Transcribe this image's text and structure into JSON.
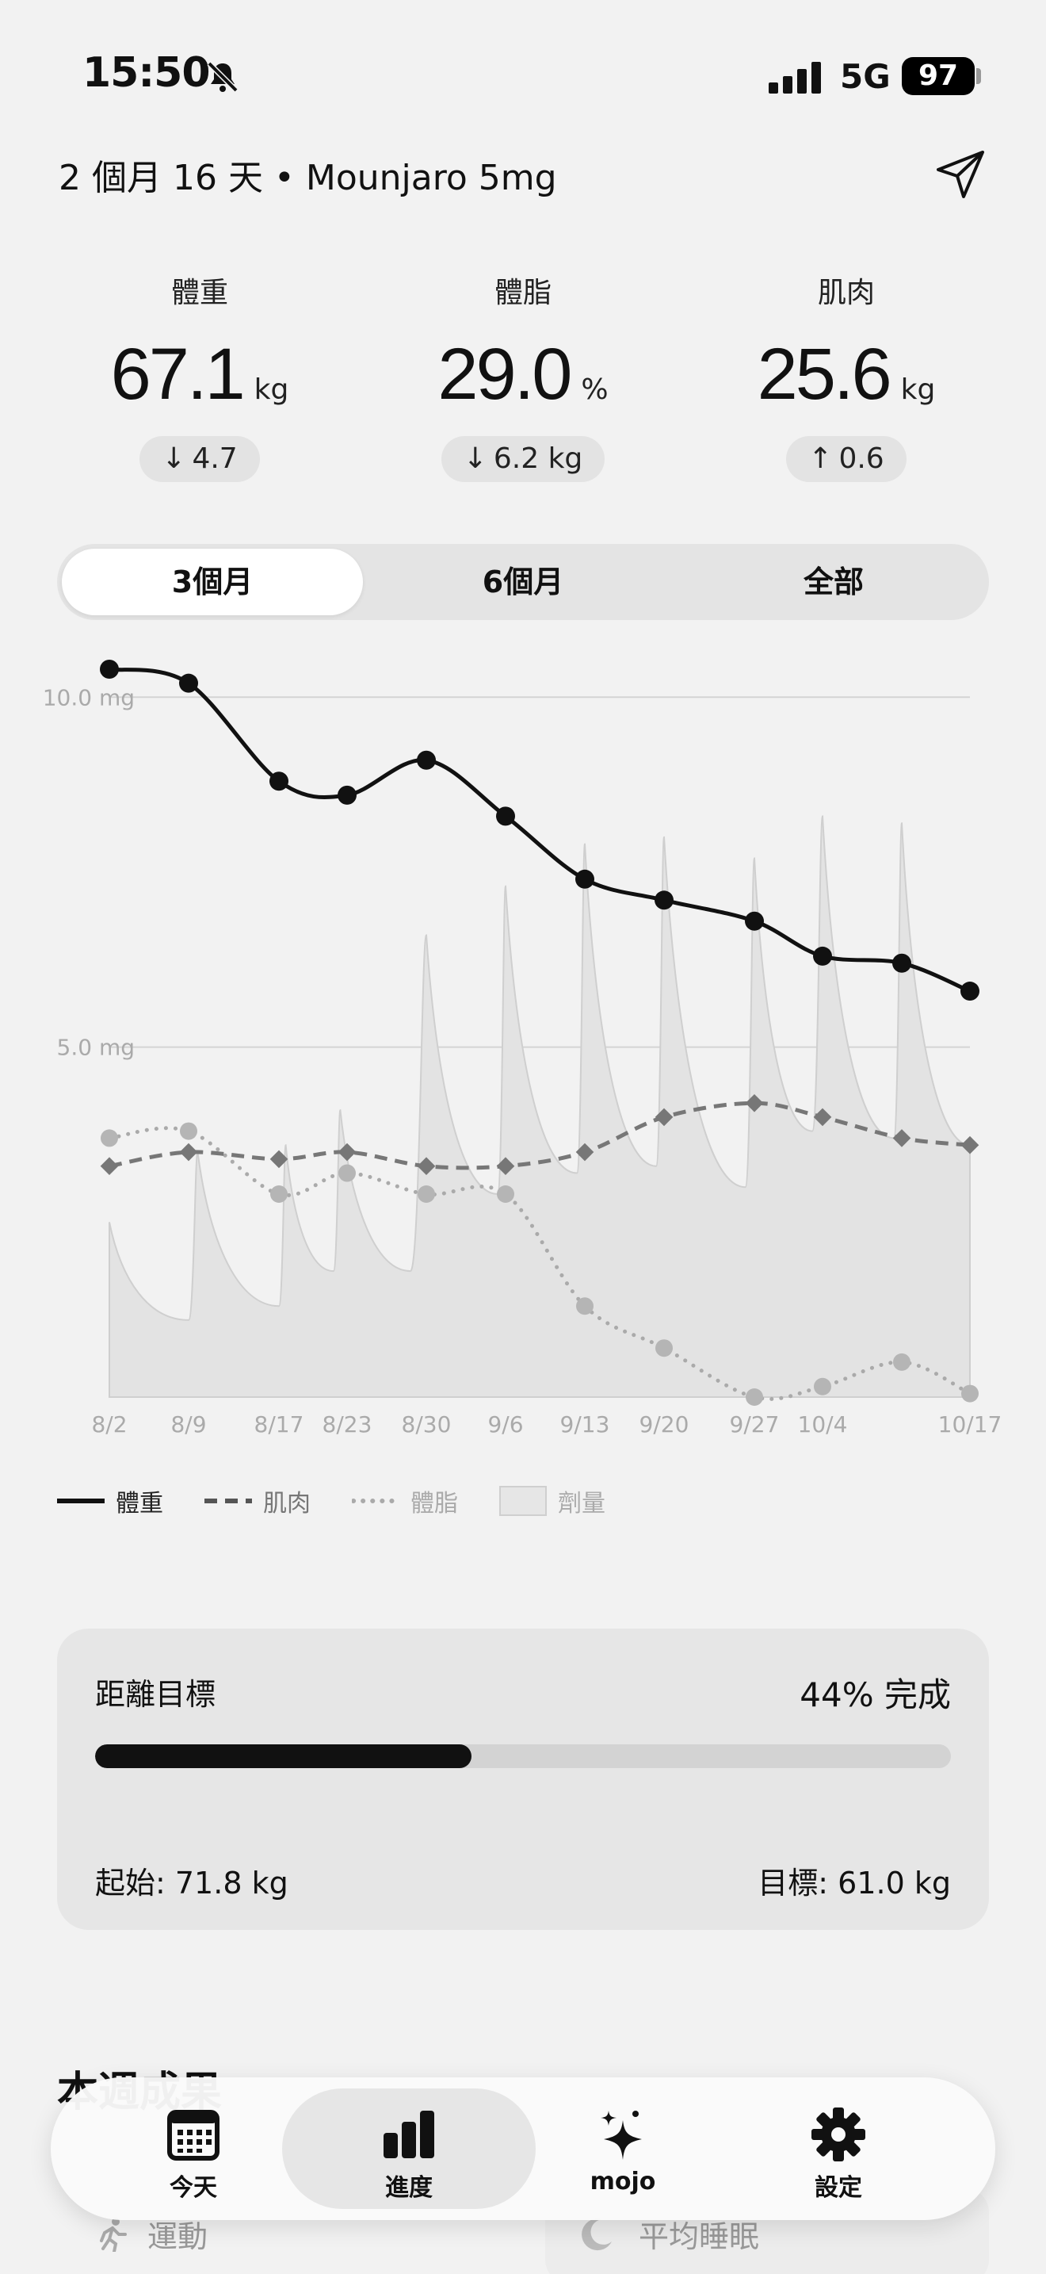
{
  "status": {
    "time": "15:50",
    "network": "5G",
    "battery": "97"
  },
  "header": {
    "title": "2 個月 16 天 • Mounjaro 5mg"
  },
  "stats": [
    {
      "label": "體重",
      "value": "67.1",
      "unit": "kg",
      "delta_arrow": "↓",
      "delta": "4.7"
    },
    {
      "label": "體脂",
      "value": "29.0",
      "unit": "%",
      "delta_arrow": "↓",
      "delta": "6.2 kg"
    },
    {
      "label": "肌肉",
      "value": "25.6",
      "unit": "kg",
      "delta_arrow": "↑",
      "delta": "0.6"
    }
  ],
  "range_tabs": {
    "selected": "3個月",
    "items": [
      "3個月",
      "6個月",
      "全部"
    ]
  },
  "chart_data": {
    "type": "line",
    "x": [
      "8/2",
      "8/9",
      "8/17",
      "8/23",
      "8/30",
      "9/6",
      "9/13",
      "9/20",
      "9/27",
      "10/4",
      "10/11",
      "10/17"
    ],
    "x_tick_labels": [
      "8/2",
      "8/9",
      "8/17",
      "8/23",
      "8/30",
      "9/6",
      "9/13",
      "9/20",
      "9/27",
      "10/4",
      "10/17"
    ],
    "y_tick_labels": [
      "10.0 mg",
      "5.0 mg"
    ],
    "y_ticks": [
      10,
      5
    ],
    "ylim": [
      0,
      10.4
    ],
    "grid": true,
    "legend_placement": "bottom",
    "series": [
      {
        "name": "體重",
        "style": "solid",
        "color": "#111111",
        "values": [
          10.4,
          10.2,
          8.8,
          8.6,
          9.1,
          8.3,
          7.4,
          7.1,
          6.8,
          6.3,
          6.2,
          5.8
        ]
      },
      {
        "name": "肌肉",
        "style": "dashed",
        "color": "#777777",
        "values": [
          3.3,
          3.5,
          3.4,
          3.5,
          3.3,
          3.3,
          3.5,
          4.0,
          4.2,
          4.0,
          3.7,
          3.6
        ]
      },
      {
        "name": "體脂",
        "style": "dotted",
        "color": "#aaaaaa",
        "values": [
          3.7,
          3.8,
          2.9,
          3.2,
          2.9,
          2.9,
          1.3,
          0.7,
          0.0,
          0.15,
          0.5,
          0.05
        ]
      }
    ],
    "dose": {
      "name": "劑量",
      "color": "#d9d9d9",
      "points": [
        [
          0,
          2.5
        ],
        [
          1.0,
          1.1
        ],
        [
          1.1,
          3.5
        ],
        [
          2.0,
          1.3
        ],
        [
          2.1,
          3.6
        ],
        [
          2.8,
          1.8
        ],
        [
          2.9,
          4.1
        ],
        [
          3.8,
          1.8
        ],
        [
          4.0,
          6.6
        ],
        [
          4.9,
          2.9
        ],
        [
          5.0,
          7.3
        ],
        [
          5.9,
          3.2
        ],
        [
          6.0,
          7.9
        ],
        [
          6.9,
          3.3
        ],
        [
          7.0,
          8.0
        ],
        [
          7.9,
          3.0
        ],
        [
          8.0,
          7.7
        ],
        [
          8.85,
          3.8
        ],
        [
          9.0,
          8.3
        ],
        [
          9.9,
          3.7
        ],
        [
          10.0,
          8.2
        ],
        [
          11.0,
          3.6
        ]
      ]
    }
  },
  "legend": [
    {
      "name": "體重",
      "style": "solid"
    },
    {
      "name": "肌肉",
      "style": "dashed"
    },
    {
      "name": "體脂",
      "style": "dotted"
    },
    {
      "name": "劑量",
      "style": "area"
    }
  ],
  "goal": {
    "title": "距離目標",
    "percent_label": "44% 完成",
    "progress": 0.44,
    "start_label": "起始: 71.8 kg",
    "target_label": "目標: 61.0 kg"
  },
  "section_peek": {
    "title": "本週成果",
    "items": [
      "運動",
      "平均睡眠"
    ]
  },
  "tabbar": {
    "items": [
      {
        "label": "今天",
        "icon": "calendar-icon"
      },
      {
        "label": "進度",
        "icon": "bar-chart-icon",
        "active": true
      },
      {
        "label": "mojo",
        "icon": "sparkle-icon"
      },
      {
        "label": "設定",
        "icon": "gear-icon"
      }
    ]
  }
}
